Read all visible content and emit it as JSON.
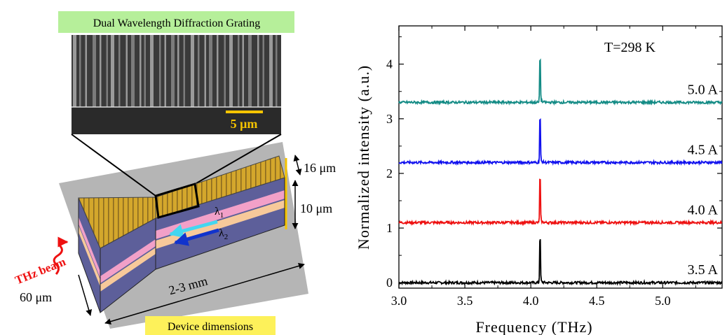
{
  "left_panel": {
    "grating_title": "Dual Wavelength Diffraction Grating",
    "scale_bar_label": "5 μm",
    "dim_16": "16 μm",
    "dim_10": "10 μm",
    "dim_60": "60 μm",
    "dim_length": "2-3 mm",
    "lambda1": "λ1",
    "lambda2": "λ2",
    "thz_beam": "THz beam",
    "device_dimensions": "Device dimensions",
    "colors": {
      "grating_gold": "#d4a72c",
      "active_blue": "#5d5f9a",
      "pink_layer": "#f2a0c8",
      "peach_layer": "#f7c99a",
      "substrate_gray": "#b5b5b5",
      "label_green_bg": "#b6ef9a",
      "label_yellow_bg": "#fdf15a",
      "scale_bar": "#f5c400",
      "thz_red": "#ee1111",
      "lambda1_arrow": "#44d6f0",
      "lambda2_arrow": "#1133cc"
    }
  },
  "chart_data": {
    "type": "line",
    "xlabel": "Frequency (THz)",
    "ylabel": "Normalized intensity (a.u.)",
    "xlim": [
      3.0,
      5.45
    ],
    "ylim": [
      -0.1,
      4.7
    ],
    "xticks": [
      3.0,
      3.5,
      4.0,
      4.5,
      5.0
    ],
    "xtick_labels": [
      "3.0",
      "3.5",
      "4.0",
      "4.5",
      "5.0"
    ],
    "yticks": [
      0,
      1,
      2,
      3,
      4
    ],
    "ytick_labels": [
      "0",
      "1",
      "2",
      "3",
      "4"
    ],
    "annotation": "T=298 K",
    "grid": false,
    "series": [
      {
        "name": "3.5 A",
        "color": "#000000",
        "baseline": 0.0,
        "peak_x": 4.07,
        "peak_y": 1.0
      },
      {
        "name": "4.0 A",
        "color": "#ee1111",
        "baseline": 1.1,
        "peak_x": 4.07,
        "peak_y": 2.1
      },
      {
        "name": "4.5 A",
        "color": "#1111ee",
        "baseline": 2.2,
        "peak_x": 4.07,
        "peak_y": 3.2
      },
      {
        "name": "5.0 A",
        "color": "#138b85",
        "baseline": 3.3,
        "peak_x": 4.07,
        "peak_y": 4.3
      }
    ]
  }
}
